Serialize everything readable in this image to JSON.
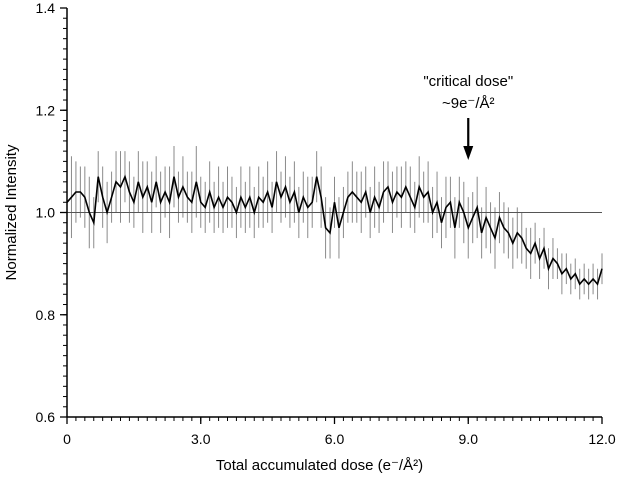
{
  "chart_data": {
    "type": "line",
    "title": "",
    "xlabel": "Total accumulated dose (e⁻/Å²)",
    "ylabel": "Normalized Intensity",
    "xlim": [
      0,
      12.0
    ],
    "ylim": [
      0.6,
      1.4
    ],
    "xticks": [
      0,
      3.0,
      6.0,
      9.0,
      12.0
    ],
    "xtick_labels": [
      "0",
      "3.0",
      "6.0",
      "9.0",
      "12.0"
    ],
    "yticks": [
      0.6,
      0.8,
      1.0,
      1.2,
      1.4
    ],
    "ytick_labels": [
      "0.6",
      "0.8",
      "1.0",
      "1.2",
      "1.4"
    ],
    "grid": false,
    "reference_line": {
      "y": 1.0
    },
    "annotation": {
      "line1": "\"critical dose\"",
      "line2": "~9e⁻/Å²",
      "x": 9.0
    },
    "series": [
      {
        "x": [
          0.0,
          0.1,
          0.2,
          0.3,
          0.4,
          0.5,
          0.6,
          0.7,
          0.8,
          0.9,
          1.0,
          1.1,
          1.2,
          1.3,
          1.4,
          1.5,
          1.6,
          1.7,
          1.8,
          1.9,
          2.0,
          2.1,
          2.2,
          2.3,
          2.4,
          2.5,
          2.6,
          2.7,
          2.8,
          2.9,
          3.0,
          3.1,
          3.2,
          3.3,
          3.4,
          3.5,
          3.6,
          3.7,
          3.8,
          3.9,
          4.0,
          4.1,
          4.2,
          4.3,
          4.4,
          4.5,
          4.6,
          4.7,
          4.8,
          4.9,
          5.0,
          5.1,
          5.2,
          5.3,
          5.4,
          5.5,
          5.6,
          5.7,
          5.8,
          5.9,
          6.0,
          6.1,
          6.2,
          6.3,
          6.4,
          6.5,
          6.6,
          6.7,
          6.8,
          6.9,
          7.0,
          7.1,
          7.2,
          7.3,
          7.4,
          7.5,
          7.6,
          7.7,
          7.8,
          7.9,
          8.0,
          8.1,
          8.2,
          8.3,
          8.4,
          8.5,
          8.6,
          8.7,
          8.8,
          8.9,
          9.0,
          9.1,
          9.2,
          9.3,
          9.4,
          9.5,
          9.6,
          9.7,
          9.8,
          9.9,
          10.0,
          10.1,
          10.2,
          10.3,
          10.4,
          10.5,
          10.6,
          10.7,
          10.8,
          10.9,
          11.0,
          11.1,
          11.2,
          11.3,
          11.4,
          11.5,
          11.6,
          11.7,
          11.8,
          11.9,
          12.0
        ],
        "y": [
          1.02,
          1.03,
          1.04,
          1.04,
          1.03,
          1.0,
          0.98,
          1.07,
          1.03,
          1.0,
          1.03,
          1.06,
          1.05,
          1.07,
          1.04,
          1.02,
          1.06,
          1.03,
          1.05,
          1.02,
          1.06,
          1.02,
          1.04,
          1.02,
          1.07,
          1.03,
          1.05,
          1.03,
          1.02,
          1.06,
          1.02,
          1.01,
          1.04,
          1.01,
          1.03,
          1.01,
          1.03,
          1.02,
          1.0,
          1.03,
          1.01,
          1.03,
          1.0,
          1.03,
          1.02,
          1.04,
          1.01,
          1.06,
          1.03,
          1.05,
          1.02,
          1.04,
          1.0,
          1.03,
          1.01,
          1.02,
          1.07,
          1.03,
          0.97,
          0.96,
          1.02,
          0.97,
          1.0,
          1.03,
          1.04,
          1.03,
          1.02,
          1.04,
          1.0,
          1.03,
          1.01,
          1.04,
          1.05,
          1.02,
          1.04,
          1.03,
          1.05,
          1.03,
          1.01,
          1.05,
          1.03,
          1.04,
          1.0,
          1.02,
          0.98,
          1.01,
          1.02,
          0.97,
          1.02,
          1.0,
          0.97,
          0.99,
          1.01,
          0.96,
          0.99,
          0.97,
          0.95,
          0.99,
          0.97,
          0.96,
          0.94,
          0.96,
          0.95,
          0.93,
          0.92,
          0.94,
          0.91,
          0.93,
          0.89,
          0.91,
          0.9,
          0.88,
          0.89,
          0.87,
          0.88,
          0.86,
          0.87,
          0.86,
          0.87,
          0.86,
          0.89
        ],
        "err": [
          0.07,
          0.08,
          0.06,
          0.05,
          0.06,
          0.07,
          0.05,
          0.05,
          0.06,
          0.06,
          0.05,
          0.06,
          0.07,
          0.05,
          0.06,
          0.05,
          0.06,
          0.07,
          0.05,
          0.06,
          0.05,
          0.06,
          0.05,
          0.07,
          0.06,
          0.05,
          0.06,
          0.05,
          0.06,
          0.07,
          0.05,
          0.05,
          0.06,
          0.05,
          0.06,
          0.05,
          0.06,
          0.05,
          0.05,
          0.06,
          0.05,
          0.06,
          0.05,
          0.06,
          0.05,
          0.06,
          0.05,
          0.06,
          0.05,
          0.06,
          0.05,
          0.06,
          0.05,
          0.05,
          0.06,
          0.05,
          0.05,
          0.06,
          0.06,
          0.05,
          0.05,
          0.06,
          0.05,
          0.05,
          0.06,
          0.05,
          0.06,
          0.05,
          0.05,
          0.06,
          0.05,
          0.06,
          0.05,
          0.06,
          0.05,
          0.06,
          0.05,
          0.06,
          0.05,
          0.06,
          0.05,
          0.06,
          0.05,
          0.06,
          0.05,
          0.06,
          0.05,
          0.06,
          0.05,
          0.06,
          0.06,
          0.05,
          0.06,
          0.05,
          0.06,
          0.05,
          0.06,
          0.05,
          0.05,
          0.05,
          0.05,
          0.05,
          0.05,
          0.04,
          0.05,
          0.04,
          0.04,
          0.04,
          0.04,
          0.04,
          0.03,
          0.04,
          0.03,
          0.03,
          0.03,
          0.03,
          0.03,
          0.03,
          0.03,
          0.03,
          0.03
        ]
      }
    ]
  }
}
